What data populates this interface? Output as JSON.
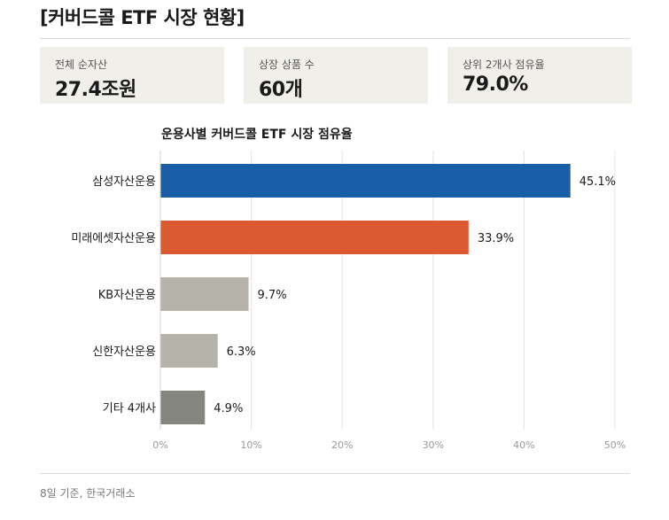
{
  "header": {
    "title": "[커버드콜 ETF 시장 현황]"
  },
  "stats": [
    {
      "label": "전체 순자산",
      "value": "27.4조원"
    },
    {
      "label": "상장 상품 수",
      "value": "60개"
    },
    {
      "label": "상위 2개사 점유율",
      "value": "79.0%"
    }
  ],
  "chart_data": {
    "type": "bar",
    "orientation": "horizontal",
    "title": "운용사별 커버드콜 ETF 시장 점유율",
    "categories": [
      "삼성자산운용",
      "미래에셋자산운용",
      "KB자산운용",
      "신한자산운용",
      "기타 4개사"
    ],
    "values": [
      45.1,
      33.9,
      9.7,
      6.3,
      4.9
    ],
    "value_labels": [
      "45.1%",
      "33.9%",
      "9.7%",
      "6.3%",
      "4.9%"
    ],
    "colors": [
      "#1a5ea8",
      "#dc5a30",
      "#b6b3aa",
      "#b6b3aa",
      "#868681"
    ],
    "xlim": [
      0,
      50
    ],
    "xticks": [
      0,
      10,
      20,
      30,
      40,
      50
    ],
    "xtick_labels": [
      "0%",
      "10%",
      "20%",
      "30%",
      "40%",
      "50%"
    ],
    "grid": true
  },
  "footer": {
    "note": "8일 기준, 한국거래소"
  }
}
